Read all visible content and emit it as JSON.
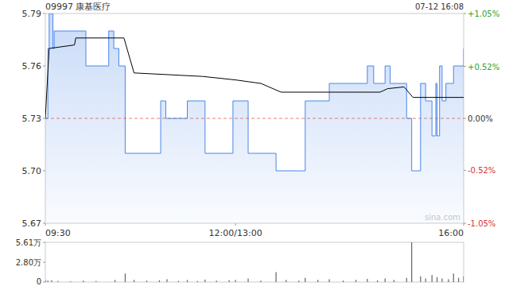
{
  "chart_data": [
    {
      "type": "line",
      "title": "09997 康基医疗",
      "subtitle": "07-12 16:08",
      "xlim": [
        0,
        330
      ],
      "xticks": [
        {
          "value": 0,
          "label": "09:30"
        },
        {
          "value": 150,
          "label": "12:00/13:00"
        },
        {
          "value": 330,
          "label": "16:00"
        }
      ],
      "ylim": [
        5.67,
        5.79
      ],
      "yticks": [
        5.67,
        {
          "value": 5.7,
          "label": "5.70"
        },
        5.73,
        5.76,
        5.79
      ],
      "y2lim": [
        -1.05,
        1.05
      ],
      "y2ticks": [
        {
          "value": -1.05,
          "label": "-1.05%"
        },
        {
          "value": -0.52,
          "label": "-0.52%"
        },
        {
          "value": 0,
          "label": "0.00%"
        },
        {
          "value": 0.52,
          "label": "+0.52%"
        },
        {
          "value": 1.05,
          "label": "+1.05%"
        }
      ],
      "grid": false,
      "annotations": [
        "sina.com"
      ],
      "series": [
        {
          "color": "#4a86e8",
          "line_style": "step",
          "x": [
            0,
            2,
            3,
            6,
            7,
            32,
            50,
            54,
            58,
            63,
            91,
            95,
            112,
            126,
            148,
            160,
            182,
            205,
            224,
            254,
            259,
            268,
            272,
            285,
            289,
            296,
            300,
            305,
            308,
            309,
            311,
            313,
            316,
            322,
            330
          ],
          "values": [
            5.73,
            5.77,
            5.79,
            5.77,
            5.78,
            5.76,
            5.78,
            5.77,
            5.76,
            5.71,
            5.74,
            5.73,
            5.74,
            5.71,
            5.74,
            5.71,
            5.7,
            5.74,
            5.75,
            5.76,
            5.75,
            5.76,
            5.75,
            5.73,
            5.7,
            5.75,
            5.74,
            5.72,
            5.75,
            5.72,
            5.76,
            5.74,
            5.75,
            5.76,
            5.77
          ]
        },
        {
          "color": "#000000",
          "line_style": "solid",
          "x": [
            0,
            3,
            23,
            24,
            62,
            70,
            124,
            150,
            170,
            186,
            264,
            270,
            283,
            290,
            330
          ],
          "values": [
            5.73,
            5.77,
            5.772,
            5.776,
            5.776,
            5.756,
            5.754,
            5.752,
            5.75,
            5.745,
            5.745,
            5.747,
            5.748,
            5.742,
            5.742
          ]
        }
      ]
    },
    {
      "type": "bar",
      "xlim": [
        0,
        330
      ],
      "ylim": [
        0,
        5.61
      ],
      "yticks": [
        0,
        {
          "value": 2.8,
          "label": "2.80万"
        },
        {
          "value": 5.61,
          "label": "5.61万"
        }
      ],
      "color": "#666666",
      "x": [
        0,
        2,
        5,
        10,
        20,
        30,
        40,
        55,
        63,
        70,
        80,
        90,
        96,
        105,
        112,
        120,
        126,
        135,
        145,
        150,
        160,
        170,
        182,
        190,
        200,
        205,
        215,
        224,
        235,
        245,
        254,
        262,
        268,
        275,
        285,
        289,
        296,
        300,
        305,
        309,
        313,
        318,
        322,
        326,
        330
      ],
      "values": [
        0.3,
        0.2,
        0.25,
        0.15,
        0.1,
        0.2,
        0.15,
        0.3,
        1.2,
        0.3,
        0.2,
        0.25,
        0.4,
        0.15,
        0.3,
        0.15,
        0.35,
        0.2,
        0.25,
        0.3,
        0.5,
        0.2,
        1.4,
        0.3,
        0.2,
        0.6,
        0.3,
        0.4,
        0.2,
        0.3,
        0.45,
        0.25,
        0.5,
        0.3,
        0.6,
        5.61,
        0.8,
        0.5,
        1.0,
        0.7,
        0.5,
        0.4,
        1.2,
        0.6,
        0.8
      ]
    }
  ]
}
